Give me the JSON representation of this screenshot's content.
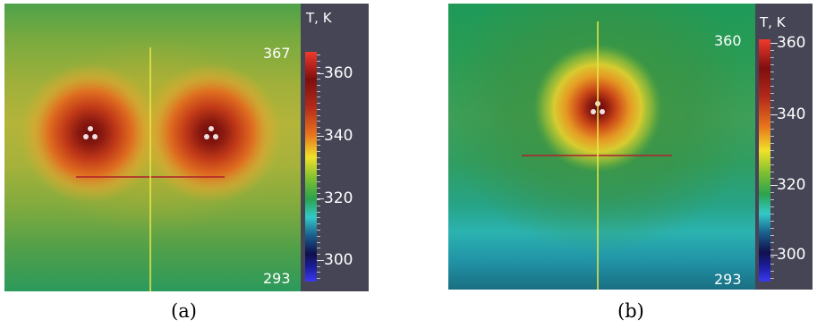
{
  "panels": [
    {
      "id": "a",
      "caption": "(a)",
      "colorbar": {
        "title": "T, K",
        "max_label": "367",
        "min_label": "293",
        "range": [
          293,
          367
        ],
        "ticks": [
          "360",
          "340",
          "320",
          "300"
        ]
      },
      "heat_sources": 2
    },
    {
      "id": "b",
      "caption": "(b)",
      "colorbar": {
        "title": "T, K",
        "max_label": "360",
        "min_label": "293",
        "range": [
          293,
          360
        ],
        "ticks": [
          "360",
          "340",
          "320",
          "300"
        ]
      },
      "heat_sources": 1
    }
  ],
  "colors": {
    "colorbar_bg": "#454556",
    "vertical_probe_line": "#e8e84a",
    "horizontal_probe_line": "#b01e2e",
    "hot_core": "#5c0a0a"
  }
}
